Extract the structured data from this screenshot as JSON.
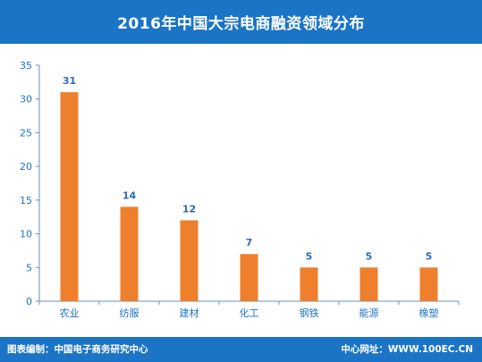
{
  "colors": {
    "header_bg": "#1b74c6",
    "footer_bg": "#1b74c6",
    "bar": "#ee7f2c",
    "axis_text": "#1b74c6",
    "value_label": "#2e6bb8",
    "axis_line": "#6e8fbf"
  },
  "header": {
    "title": "2016年中国大宗电商融资领域分布"
  },
  "footer": {
    "source": "图表编制：中国电子商务研究中心",
    "website": "中心网址：WWW.100EC.CN"
  },
  "chart_data": {
    "type": "bar",
    "title": "2016年中国大宗电商融资领域分布",
    "categories": [
      "农业",
      "纺服",
      "建材",
      "化工",
      "钢铁",
      "能源",
      "橡塑"
    ],
    "values": [
      31,
      14,
      12,
      7,
      5,
      5,
      5
    ],
    "data_labels": [
      "31",
      "14",
      "12",
      "7",
      "5",
      "5",
      "5"
    ],
    "y_ticks": [
      "0",
      "5",
      "10",
      "15",
      "20",
      "25",
      "30",
      "35"
    ],
    "ylim": [
      0,
      35
    ],
    "xlabel": "",
    "ylabel": "",
    "grid": false,
    "legend": "none"
  }
}
